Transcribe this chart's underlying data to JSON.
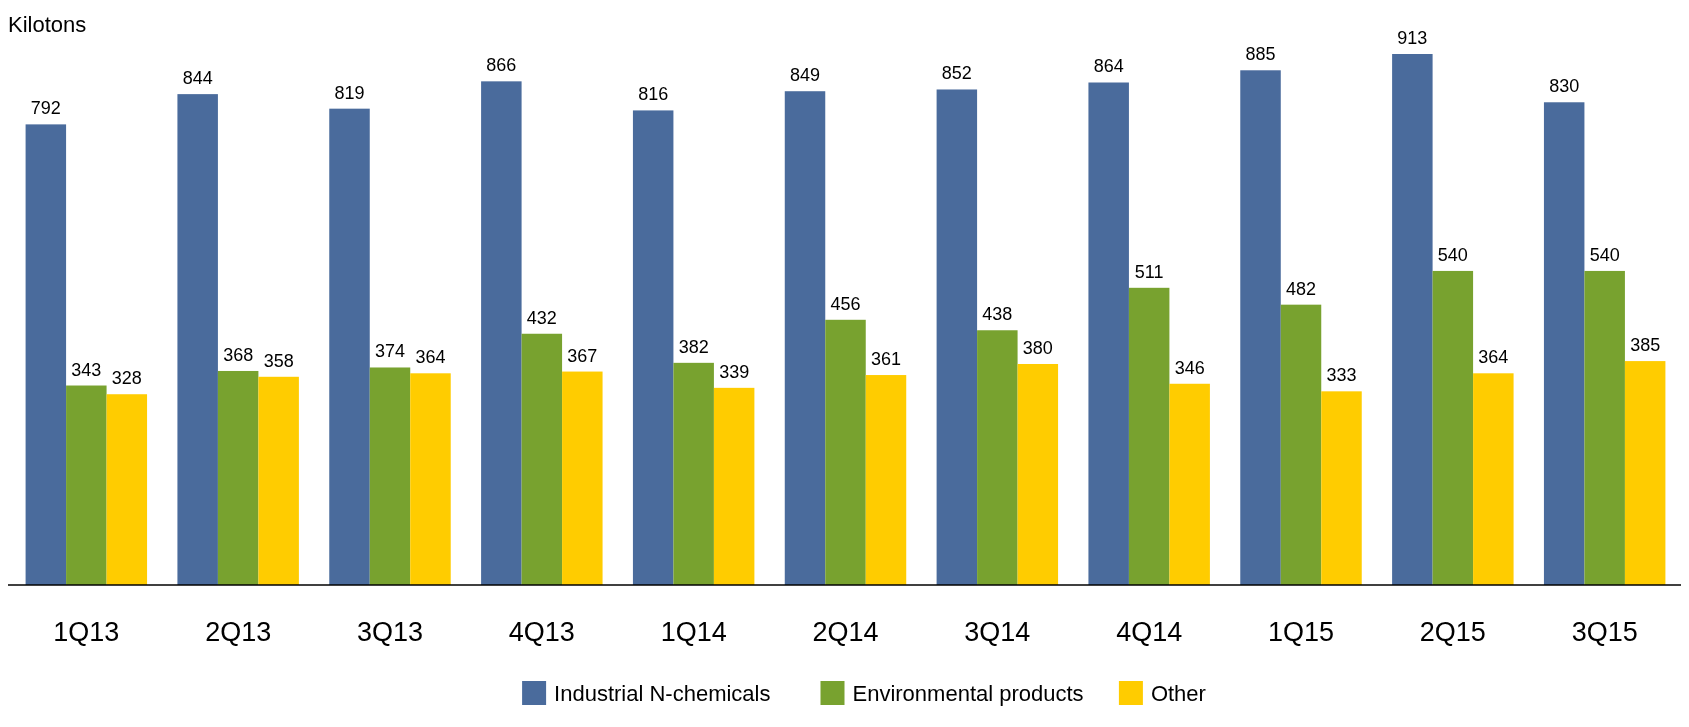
{
  "chart_data": {
    "type": "bar",
    "ylabel": "Kilotons",
    "categories": [
      "1Q13",
      "2Q13",
      "3Q13",
      "4Q13",
      "1Q14",
      "2Q14",
      "3Q14",
      "4Q14",
      "1Q15",
      "2Q15",
      "3Q15"
    ],
    "series": [
      {
        "name": "Industrial N-chemicals",
        "color": "#4a6b9c",
        "values": [
          792,
          844,
          819,
          866,
          816,
          849,
          852,
          864,
          885,
          913,
          830
        ]
      },
      {
        "name": "Environmental products",
        "color": "#78a22f",
        "values": [
          343,
          368,
          374,
          432,
          382,
          456,
          438,
          511,
          482,
          540,
          540
        ]
      },
      {
        "name": "Other",
        "color": "#ffcc00",
        "values": [
          328,
          358,
          364,
          367,
          339,
          361,
          380,
          346,
          333,
          364,
          385
        ]
      }
    ],
    "data_labels": true,
    "legend": "bottom"
  }
}
